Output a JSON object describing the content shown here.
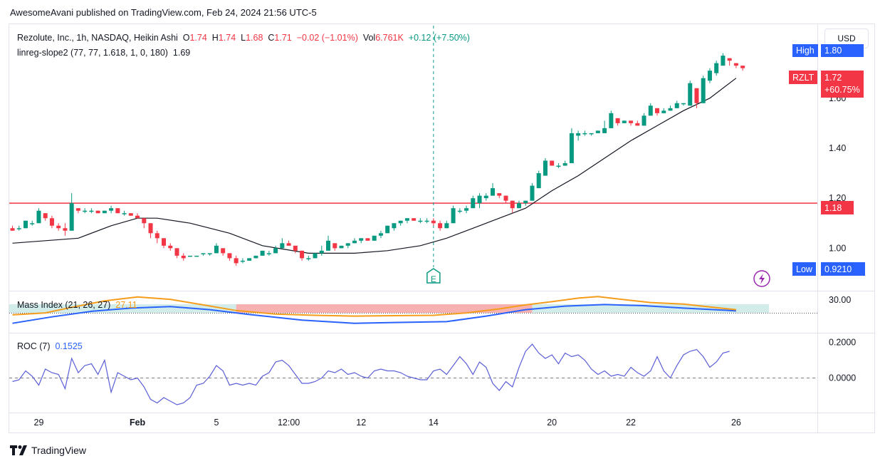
{
  "header": {
    "published": "AwesomeAvani published on TradingView.com, Feb 24, 2024 21:56 UTC-5"
  },
  "legend": {
    "symbol": "Rezolute, Inc., 1h, NASDAQ, Heikin Ashi",
    "o_label": "O",
    "o": "1.74",
    "h_label": "H",
    "h": "1.74",
    "l_label": "L",
    "l": "1.68",
    "c_label": "C",
    "c": "1.71",
    "change": "−0.02 (−1.01%)",
    "vol_label": "Vol",
    "vol": "6.761K",
    "vol_change": "+0.12 (+7.50%)",
    "indicator": "linreg-slope2 (77, 77, 1.618, 1, 0, 180)",
    "indicator_value": "1.69"
  },
  "mass_index": {
    "label": "Mass Index (21, 26, 27)",
    "value": "27.11"
  },
  "roc": {
    "label": "ROC (7)",
    "value": "0.1525"
  },
  "currency": "USD",
  "badges": {
    "high_label": "High",
    "high_value": "1.80",
    "symbol_tag": "RZLT",
    "last_price": "1.72",
    "last_change": "+60.75%",
    "line_price": "1.18",
    "low_label": "Low",
    "low_value": "0.9210"
  },
  "earnings_marker": "E",
  "brand": "TradingView",
  "colors": {
    "up": "#089981",
    "down": "#f23645",
    "accent": "#2962ff",
    "orange": "#f59d1b",
    "purple": "#9c27b0"
  },
  "chart_data": {
    "type": "candlestick",
    "price_axis": {
      "ticks": [
        "1.80",
        "1.60",
        "1.40",
        "1.20",
        "1.00"
      ],
      "tick_values": [
        1.8,
        1.6,
        1.4,
        1.2,
        1.0
      ],
      "range": [
        0.83,
        1.89
      ]
    },
    "mass_axis": {
      "ticks": [
        "30.00"
      ],
      "tick_values": [
        30
      ],
      "range": [
        22,
        32
      ]
    },
    "roc_axis": {
      "ticks": [
        "0.2000",
        "0.0000"
      ],
      "tick_values": [
        0.2,
        0.0
      ],
      "range": [
        -0.19,
        0.25
      ]
    },
    "x_axis": {
      "labels": [
        "29",
        "Feb",
        "5",
        "12:00",
        "12",
        "14",
        "20",
        "22",
        "26"
      ],
      "label_index": [
        4,
        19,
        31,
        42,
        53,
        64,
        82,
        94,
        110
      ]
    },
    "horizontal_line": 1.18,
    "earnings_index": 64,
    "candles": [
      [
        1.08,
        1.09,
        1.07,
        1.07
      ],
      [
        1.08,
        1.09,
        1.07,
        1.08
      ],
      [
        1.08,
        1.11,
        1.08,
        1.11
      ],
      [
        1.1,
        1.11,
        1.09,
        1.1
      ],
      [
        1.1,
        1.16,
        1.1,
        1.15
      ],
      [
        1.14,
        1.14,
        1.11,
        1.12
      ],
      [
        1.12,
        1.13,
        1.08,
        1.09
      ],
      [
        1.09,
        1.1,
        1.07,
        1.08
      ],
      [
        1.08,
        1.1,
        1.05,
        1.07
      ],
      [
        1.07,
        1.22,
        1.07,
        1.18
      ],
      [
        1.16,
        1.16,
        1.14,
        1.15
      ],
      [
        1.15,
        1.16,
        1.14,
        1.15
      ],
      [
        1.15,
        1.16,
        1.14,
        1.15
      ],
      [
        1.15,
        1.15,
        1.14,
        1.14
      ],
      [
        1.14,
        1.15,
        1.14,
        1.15
      ],
      [
        1.15,
        1.17,
        1.14,
        1.16
      ],
      [
        1.16,
        1.16,
        1.14,
        1.14
      ],
      [
        1.14,
        1.15,
        1.13,
        1.14
      ],
      [
        1.14,
        1.14,
        1.13,
        1.13
      ],
      [
        1.13,
        1.14,
        1.12,
        1.12
      ],
      [
        1.12,
        1.12,
        1.08,
        1.1
      ],
      [
        1.1,
        1.1,
        1.04,
        1.06
      ],
      [
        1.06,
        1.07,
        1.02,
        1.04
      ],
      [
        1.04,
        1.04,
        1.0,
        1.01
      ],
      [
        1.01,
        1.02,
        0.99,
        1.0
      ],
      [
        1.0,
        1.0,
        0.96,
        0.97
      ],
      [
        0.97,
        0.98,
        0.95,
        0.96
      ],
      [
        0.97,
        0.97,
        0.97,
        0.97
      ],
      [
        0.97,
        0.97,
        0.97,
        0.97
      ],
      [
        0.98,
        0.98,
        0.97,
        0.98
      ],
      [
        0.98,
        0.98,
        0.97,
        0.98
      ],
      [
        0.98,
        1.02,
        0.98,
        1.01
      ],
      [
        1.0,
        1.0,
        0.97,
        0.98
      ],
      [
        0.98,
        0.98,
        0.95,
        0.96
      ],
      [
        0.96,
        0.97,
        0.93,
        0.94
      ],
      [
        0.95,
        0.96,
        0.94,
        0.95
      ],
      [
        0.95,
        0.96,
        0.95,
        0.96
      ],
      [
        0.96,
        0.97,
        0.96,
        0.97
      ],
      [
        0.97,
        0.99,
        0.97,
        0.99
      ],
      [
        0.98,
        0.99,
        0.97,
        0.98
      ],
      [
        0.98,
        1.01,
        0.98,
        1.0
      ],
      [
        1.0,
        1.04,
        1.0,
        1.02
      ],
      [
        1.02,
        1.03,
        1.01,
        1.01
      ],
      [
        1.01,
        1.01,
        0.98,
        0.99
      ],
      [
        0.99,
        0.99,
        0.95,
        0.96
      ],
      [
        0.96,
        0.97,
        0.95,
        0.96
      ],
      [
        0.96,
        0.98,
        0.96,
        0.98
      ],
      [
        0.98,
        1.01,
        0.97,
        0.99
      ],
      [
        0.99,
        1.05,
        0.99,
        1.03
      ],
      [
        1.02,
        1.02,
        0.99,
        1.0
      ],
      [
        1.0,
        1.01,
        1.0,
        1.01
      ],
      [
        1.01,
        1.02,
        1.0,
        1.02
      ],
      [
        1.02,
        1.04,
        1.02,
        1.03
      ],
      [
        1.03,
        1.04,
        1.02,
        1.04
      ],
      [
        1.04,
        1.04,
        1.03,
        1.03
      ],
      [
        1.03,
        1.05,
        1.03,
        1.05
      ],
      [
        1.05,
        1.07,
        1.04,
        1.06
      ],
      [
        1.06,
        1.09,
        1.06,
        1.09
      ],
      [
        1.08,
        1.1,
        1.07,
        1.1
      ],
      [
        1.1,
        1.11,
        1.09,
        1.11
      ],
      [
        1.11,
        1.12,
        1.1,
        1.12
      ],
      [
        1.12,
        1.12,
        1.11,
        1.11
      ],
      [
        1.11,
        1.12,
        1.1,
        1.11
      ],
      [
        1.11,
        1.12,
        1.1,
        1.11
      ],
      [
        1.11,
        1.12,
        1.09,
        1.1
      ],
      [
        1.1,
        1.11,
        1.07,
        1.08
      ],
      [
        1.08,
        1.11,
        1.08,
        1.1
      ],
      [
        1.1,
        1.17,
        1.1,
        1.16
      ],
      [
        1.15,
        1.16,
        1.14,
        1.15
      ],
      [
        1.15,
        1.17,
        1.14,
        1.16
      ],
      [
        1.16,
        1.21,
        1.16,
        1.2
      ],
      [
        1.18,
        1.22,
        1.16,
        1.21
      ],
      [
        1.2,
        1.22,
        1.19,
        1.21
      ],
      [
        1.21,
        1.26,
        1.21,
        1.24
      ],
      [
        1.22,
        1.22,
        1.2,
        1.21
      ],
      [
        1.21,
        1.21,
        1.18,
        1.19
      ],
      [
        1.19,
        1.19,
        1.14,
        1.16
      ],
      [
        1.16,
        1.19,
        1.16,
        1.18
      ],
      [
        1.18,
        1.19,
        1.17,
        1.19
      ],
      [
        1.19,
        1.26,
        1.19,
        1.25
      ],
      [
        1.24,
        1.31,
        1.24,
        1.3
      ],
      [
        1.29,
        1.36,
        1.29,
        1.35
      ],
      [
        1.35,
        1.35,
        1.33,
        1.33
      ],
      [
        1.33,
        1.34,
        1.32,
        1.33
      ],
      [
        1.33,
        1.35,
        1.33,
        1.34
      ],
      [
        1.34,
        1.48,
        1.34,
        1.46
      ],
      [
        1.45,
        1.47,
        1.43,
        1.46
      ],
      [
        1.46,
        1.47,
        1.45,
        1.46
      ],
      [
        1.46,
        1.46,
        1.45,
        1.46
      ],
      [
        1.46,
        1.47,
        1.46,
        1.47
      ],
      [
        1.46,
        1.51,
        1.46,
        1.48
      ],
      [
        1.48,
        1.55,
        1.48,
        1.54
      ],
      [
        1.52,
        1.52,
        1.49,
        1.5
      ],
      [
        1.5,
        1.51,
        1.5,
        1.51
      ],
      [
        1.51,
        1.51,
        1.49,
        1.5
      ],
      [
        1.5,
        1.51,
        1.49,
        1.49
      ],
      [
        1.49,
        1.54,
        1.49,
        1.53
      ],
      [
        1.53,
        1.58,
        1.53,
        1.57
      ],
      [
        1.56,
        1.56,
        1.53,
        1.54
      ],
      [
        1.54,
        1.56,
        1.54,
        1.55
      ],
      [
        1.55,
        1.57,
        1.55,
        1.56
      ],
      [
        1.56,
        1.59,
        1.56,
        1.58
      ],
      [
        1.58,
        1.58,
        1.57,
        1.58
      ],
      [
        1.57,
        1.67,
        1.57,
        1.66
      ],
      [
        1.64,
        1.64,
        1.56,
        1.58
      ],
      [
        1.58,
        1.69,
        1.58,
        1.68
      ],
      [
        1.67,
        1.72,
        1.66,
        1.71
      ],
      [
        1.7,
        1.75,
        1.69,
        1.74
      ],
      [
        1.73,
        1.78,
        1.73,
        1.77
      ],
      [
        1.76,
        1.76,
        1.73,
        1.75
      ],
      [
        1.74,
        1.74,
        1.72,
        1.73
      ],
      [
        1.73,
        1.73,
        1.71,
        1.72
      ]
    ],
    "regression_line": [
      [
        0,
        1.02
      ],
      [
        5,
        1.03
      ],
      [
        10,
        1.04
      ],
      [
        15,
        1.09
      ],
      [
        19,
        1.12
      ],
      [
        22,
        1.12
      ],
      [
        27,
        1.1
      ],
      [
        33,
        1.06
      ],
      [
        38,
        1.01
      ],
      [
        45,
        0.98
      ],
      [
        52,
        0.98
      ],
      [
        57,
        0.99
      ],
      [
        62,
        1.01
      ],
      [
        66,
        1.04
      ],
      [
        70,
        1.08
      ],
      [
        74,
        1.12
      ],
      [
        78,
        1.16
      ],
      [
        82,
        1.23
      ],
      [
        86,
        1.29
      ],
      [
        90,
        1.36
      ],
      [
        94,
        1.43
      ],
      [
        98,
        1.49
      ],
      [
        102,
        1.55
      ],
      [
        106,
        1.6
      ],
      [
        110,
        1.68
      ]
    ],
    "mass_index": [
      [
        0,
        26.3
      ],
      [
        5,
        26.8
      ],
      [
        9,
        28.2
      ],
      [
        14,
        29.8
      ],
      [
        19,
        30.8
      ],
      [
        24,
        30.2
      ],
      [
        29,
        28.8
      ],
      [
        34,
        27.4
      ],
      [
        40,
        26.5
      ],
      [
        46,
        26.2
      ],
      [
        52,
        26.0
      ],
      [
        58,
        26.1
      ],
      [
        64,
        26.2
      ],
      [
        69,
        26.8
      ],
      [
        74,
        27.8
      ],
      [
        78,
        28.8
      ],
      [
        82,
        29.6
      ],
      [
        86,
        30.5
      ],
      [
        89,
        30.9
      ],
      [
        92,
        30.3
      ],
      [
        97,
        29.4
      ],
      [
        102,
        29.0
      ],
      [
        106,
        28.3
      ],
      [
        110,
        27.6
      ]
    ],
    "mass_baseline": [
      [
        0,
        24.2
      ],
      [
        6,
        25.8
      ],
      [
        12,
        27.2
      ],
      [
        18,
        28.0
      ],
      [
        24,
        28.4
      ],
      [
        30,
        27.6
      ],
      [
        36,
        26.4
      ],
      [
        44,
        25.0
      ],
      [
        52,
        24.2
      ],
      [
        58,
        24.4
      ],
      [
        66,
        24.6
      ],
      [
        72,
        26.0
      ],
      [
        78,
        27.6
      ],
      [
        84,
        28.5
      ],
      [
        90,
        28.9
      ],
      [
        96,
        28.6
      ],
      [
        102,
        28.0
      ],
      [
        108,
        27.5
      ],
      [
        110,
        27.3
      ]
    ],
    "roc": [
      -0.02,
      -0.01,
      0.04,
      0.01,
      -0.04,
      0.05,
      0.03,
      0.02,
      -0.06,
      0.11,
      0.03,
      0.07,
      0.08,
      0.02,
      0.1,
      -0.08,
      0.03,
      0.01,
      -0.01,
      0.0,
      -0.05,
      -0.12,
      -0.14,
      -0.11,
      -0.13,
      -0.15,
      -0.14,
      -0.11,
      -0.04,
      -0.03,
      0.01,
      0.07,
      0.04,
      -0.04,
      -0.03,
      -0.04,
      -0.03,
      -0.04,
      0.01,
      0.03,
      0.09,
      0.1,
      0.07,
      0.02,
      -0.03,
      -0.03,
      -0.02,
      0.0,
      0.04,
      0.03,
      0.05,
      0.02,
      0.03,
      0.01,
      0.0,
      0.04,
      0.05,
      0.04,
      0.04,
      0.03,
      0.01,
      0.0,
      -0.01,
      -0.01,
      0.04,
      0.05,
      0.02,
      0.07,
      0.12,
      0.08,
      0.02,
      0.09,
      0.06,
      -0.03,
      -0.07,
      -0.02,
      -0.05,
      0.06,
      0.15,
      0.19,
      0.14,
      0.11,
      0.13,
      0.08,
      0.14,
      0.12,
      0.13,
      0.1,
      0.05,
      0.02,
      0.04,
      0.01,
      0.02,
      0.01,
      0.06,
      0.03,
      0.01,
      0.04,
      0.12,
      0.04,
      0.0,
      0.07,
      0.13,
      0.15,
      0.16,
      0.12,
      0.06,
      0.09,
      0.14,
      0.15
    ]
  }
}
